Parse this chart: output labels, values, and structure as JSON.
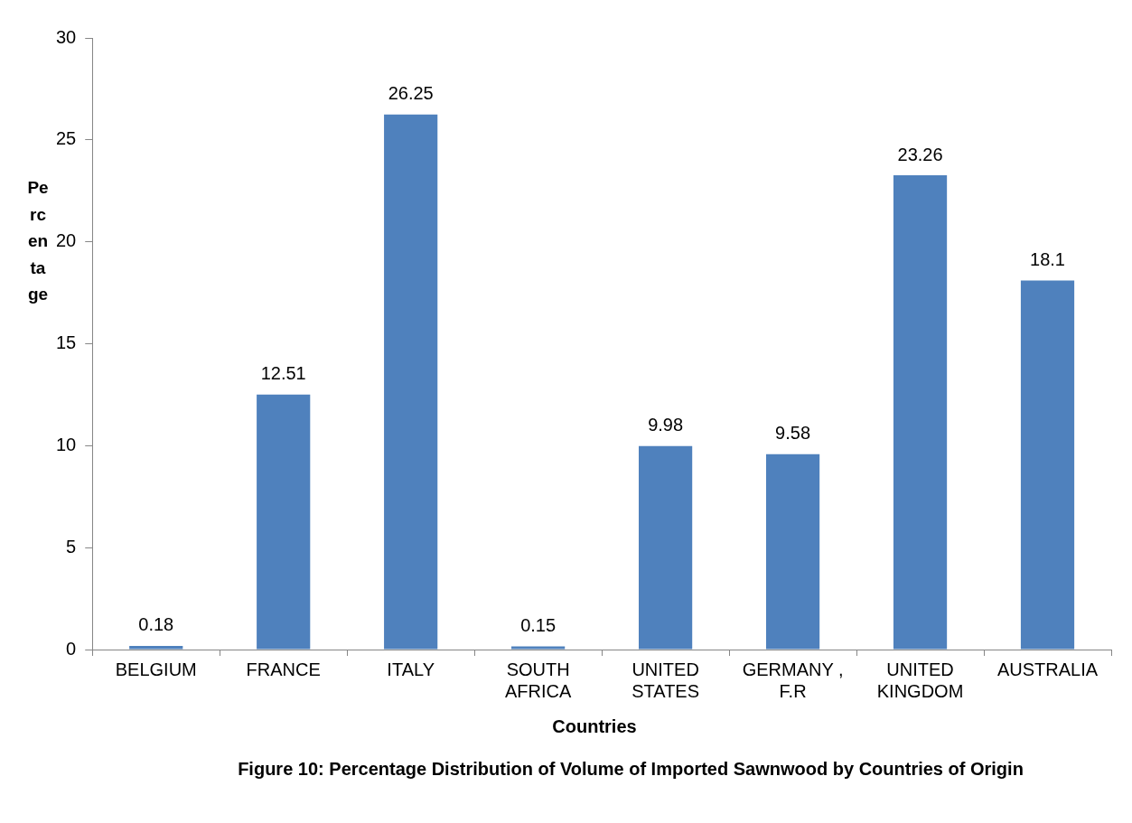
{
  "chart_data": {
    "type": "bar",
    "title": "Figure 10: Percentage Distribution of Volume of Imported Sawnwood by Countries of Origin",
    "xlabel": "Countries",
    "ylabel": "Percentage",
    "categories": [
      "BELGIUM",
      "FRANCE",
      "ITALY",
      "SOUTH AFRICA",
      "UNITED STATES",
      "GERMANY , F.R",
      "UNITED KINGDOM",
      "AUSTRALIA"
    ],
    "values": [
      0.18,
      12.51,
      26.25,
      0.15,
      9.98,
      9.58,
      23.26,
      18.1
    ],
    "color": "#4f81bd",
    "ylim": [
      0,
      30
    ],
    "yticks": [
      0,
      5,
      10,
      15,
      20,
      25,
      30
    ],
    "data_labels": true,
    "legend": false
  }
}
